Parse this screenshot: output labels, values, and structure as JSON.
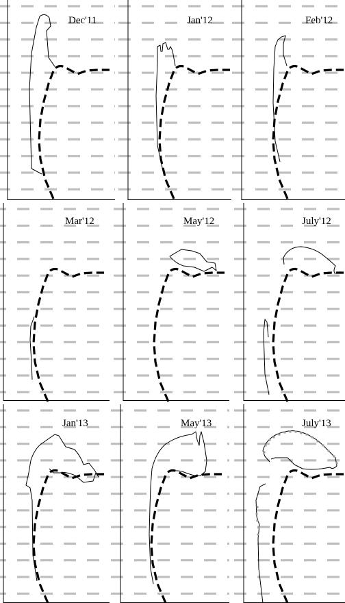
{
  "figure": {
    "panels": [
      {
        "label": "Dec'11",
        "outline": "dec11"
      },
      {
        "label": "Jan'12",
        "outline": "jan12"
      },
      {
        "label": "Feb'12",
        "outline": "feb12"
      },
      {
        "label": "Mar'12",
        "outline": "mar12"
      },
      {
        "label": "May'12",
        "outline": "may12"
      },
      {
        "label": "July'12",
        "outline": "jul12"
      },
      {
        "label": "Jan'13",
        "outline": "jan13"
      },
      {
        "label": "May'13",
        "outline": "may13"
      },
      {
        "label": "July'13",
        "outline": "jul13"
      }
    ],
    "colors": {
      "grid_dash": "#bfbfbf",
      "reference_profile": "#000000",
      "outline": "#000000",
      "axis": "#000000",
      "survey_marks": "#9a9a9a"
    },
    "line_styles": {
      "grid": "dashed",
      "reference_profile": "bold dashed",
      "outline": "thin solid"
    }
  }
}
